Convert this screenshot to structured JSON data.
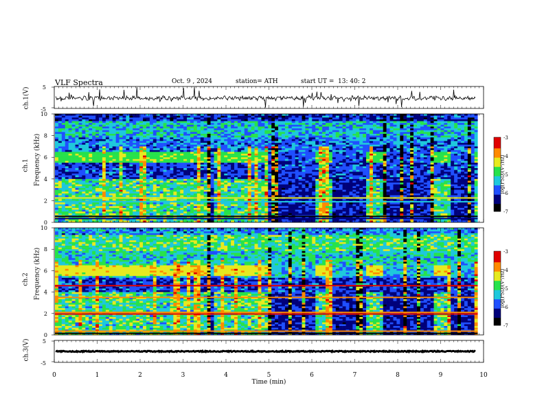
{
  "header": {
    "title": "VLF  Spectra",
    "date": "Oct. 9  , 2024",
    "station": "station= ATH",
    "start_label": "start  UT  =",
    "start_time": "13: 40: 2"
  },
  "panels": {
    "ch1_label": "ch.1(V)",
    "ch3_label": "ch.3(V)",
    "spec1_label": "ch.1",
    "spec2_label": "ch.2",
    "freq_label": "Frequency  (kHz)",
    "colorbar_label": "log(PSD)(V²/Hz)"
  },
  "colors": {
    "low": "#000000",
    "dark_blue": "#00007a",
    "blue": "#1f4fff",
    "cyan": "#1ec8dc",
    "green": "#27e24b",
    "yellow": "#e6ea1f",
    "orange": "#ff8a00",
    "red": "#e00000"
  },
  "chart_data": [
    {
      "type": "line",
      "name": "ch.1 waveform",
      "ylabel": "ch.1(V)",
      "yticks": [
        "5",
        "-5"
      ],
      "ylim": [
        -5,
        5
      ],
      "xlim": [
        0,
        10
      ]
    },
    {
      "type": "heatmap",
      "name": "ch.1 spectrogram",
      "ylabel": "Frequency  (kHz)",
      "channel": "ch.1",
      "ylim": [
        0,
        10
      ],
      "yticks": [
        "0",
        "2",
        "4",
        "6",
        "8",
        "10"
      ],
      "xlim": [
        0,
        10
      ],
      "colorbar": {
        "ticks": [
          "-3",
          "-4",
          "-5",
          "-6",
          "-7"
        ],
        "range": [
          -7,
          -3
        ],
        "label": "log(PSD)(V²/Hz)"
      }
    },
    {
      "type": "heatmap",
      "name": "ch.2 spectrogram",
      "ylabel": "Frequency  (kHz)",
      "channel": "ch.2",
      "ylim": [
        0,
        10
      ],
      "yticks": [
        "0",
        "2",
        "4",
        "6",
        "8",
        "10"
      ],
      "xlim": [
        0,
        10
      ],
      "colorbar": {
        "ticks": [
          "-3",
          "-4",
          "-5",
          "-6",
          "-7"
        ],
        "range": [
          -7,
          -3
        ],
        "label": "log(PSD)(V²/Hz)"
      }
    },
    {
      "type": "line",
      "name": "ch.3 waveform",
      "ylabel": "ch.3(V)",
      "yticks": [
        "5",
        "-5"
      ],
      "ylim": [
        -5,
        5
      ],
      "xlim": [
        0,
        10
      ],
      "xlabel": "Time  (min)",
      "xticks": [
        "0",
        "1",
        "2",
        "3",
        "4",
        "5",
        "6",
        "7",
        "8",
        "9",
        "10"
      ]
    }
  ]
}
